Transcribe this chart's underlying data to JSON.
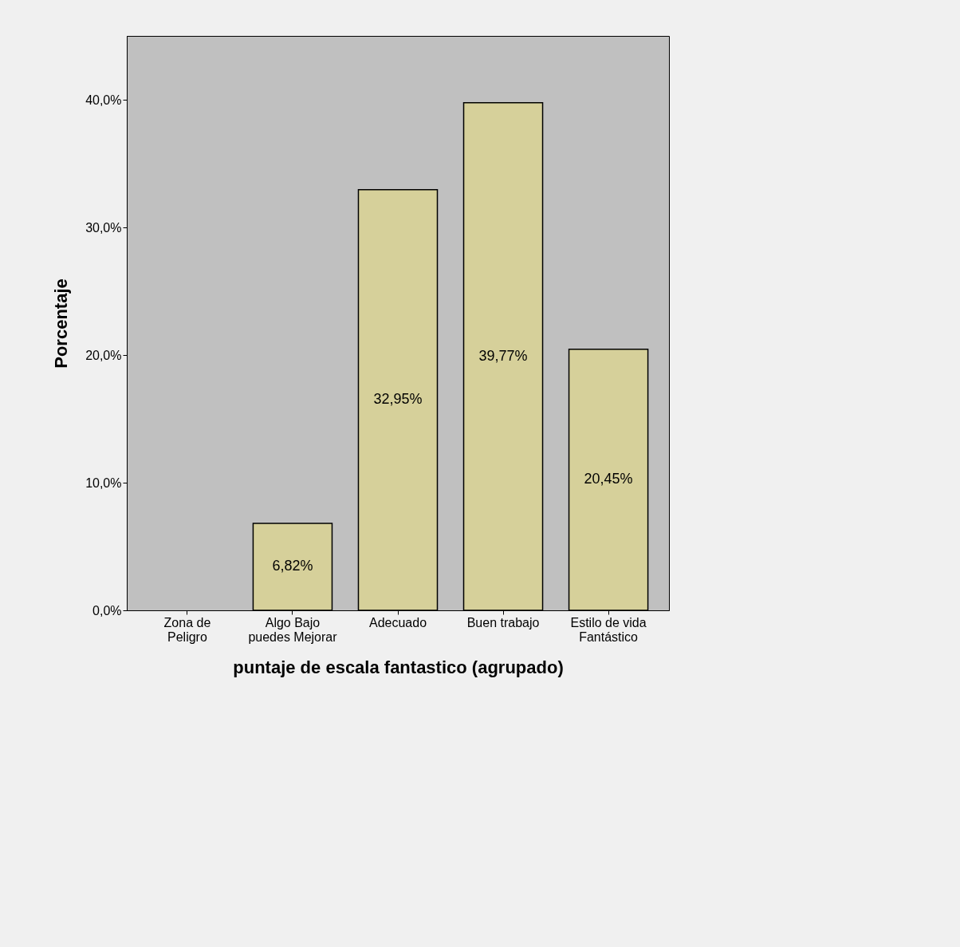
{
  "chart_data": {
    "type": "bar",
    "xlabel": "puntaje de escala fantastico (agrupado)",
    "ylabel": "Porcentaje",
    "categories": [
      "Zona de Peligro",
      "Algo Bajo puedes Mejorar",
      "Adecuado",
      "Buen trabajo",
      "Estilo de vida Fantástico"
    ],
    "values": [
      null,
      6.82,
      32.95,
      39.77,
      20.45
    ],
    "value_labels": [
      null,
      "6,82%",
      "32,95%",
      "39,77%",
      "20,45%"
    ],
    "color": "#d6d09a",
    "ylim": [
      0,
      45
    ],
    "yticks": [
      {
        "value": 0,
        "label": "0,0%"
      },
      {
        "value": 10,
        "label": "10,0%"
      },
      {
        "value": 20,
        "label": "20,0%"
      },
      {
        "value": 30,
        "label": "30,0%"
      },
      {
        "value": 40,
        "label": "40,0%"
      }
    ],
    "grid": false
  }
}
